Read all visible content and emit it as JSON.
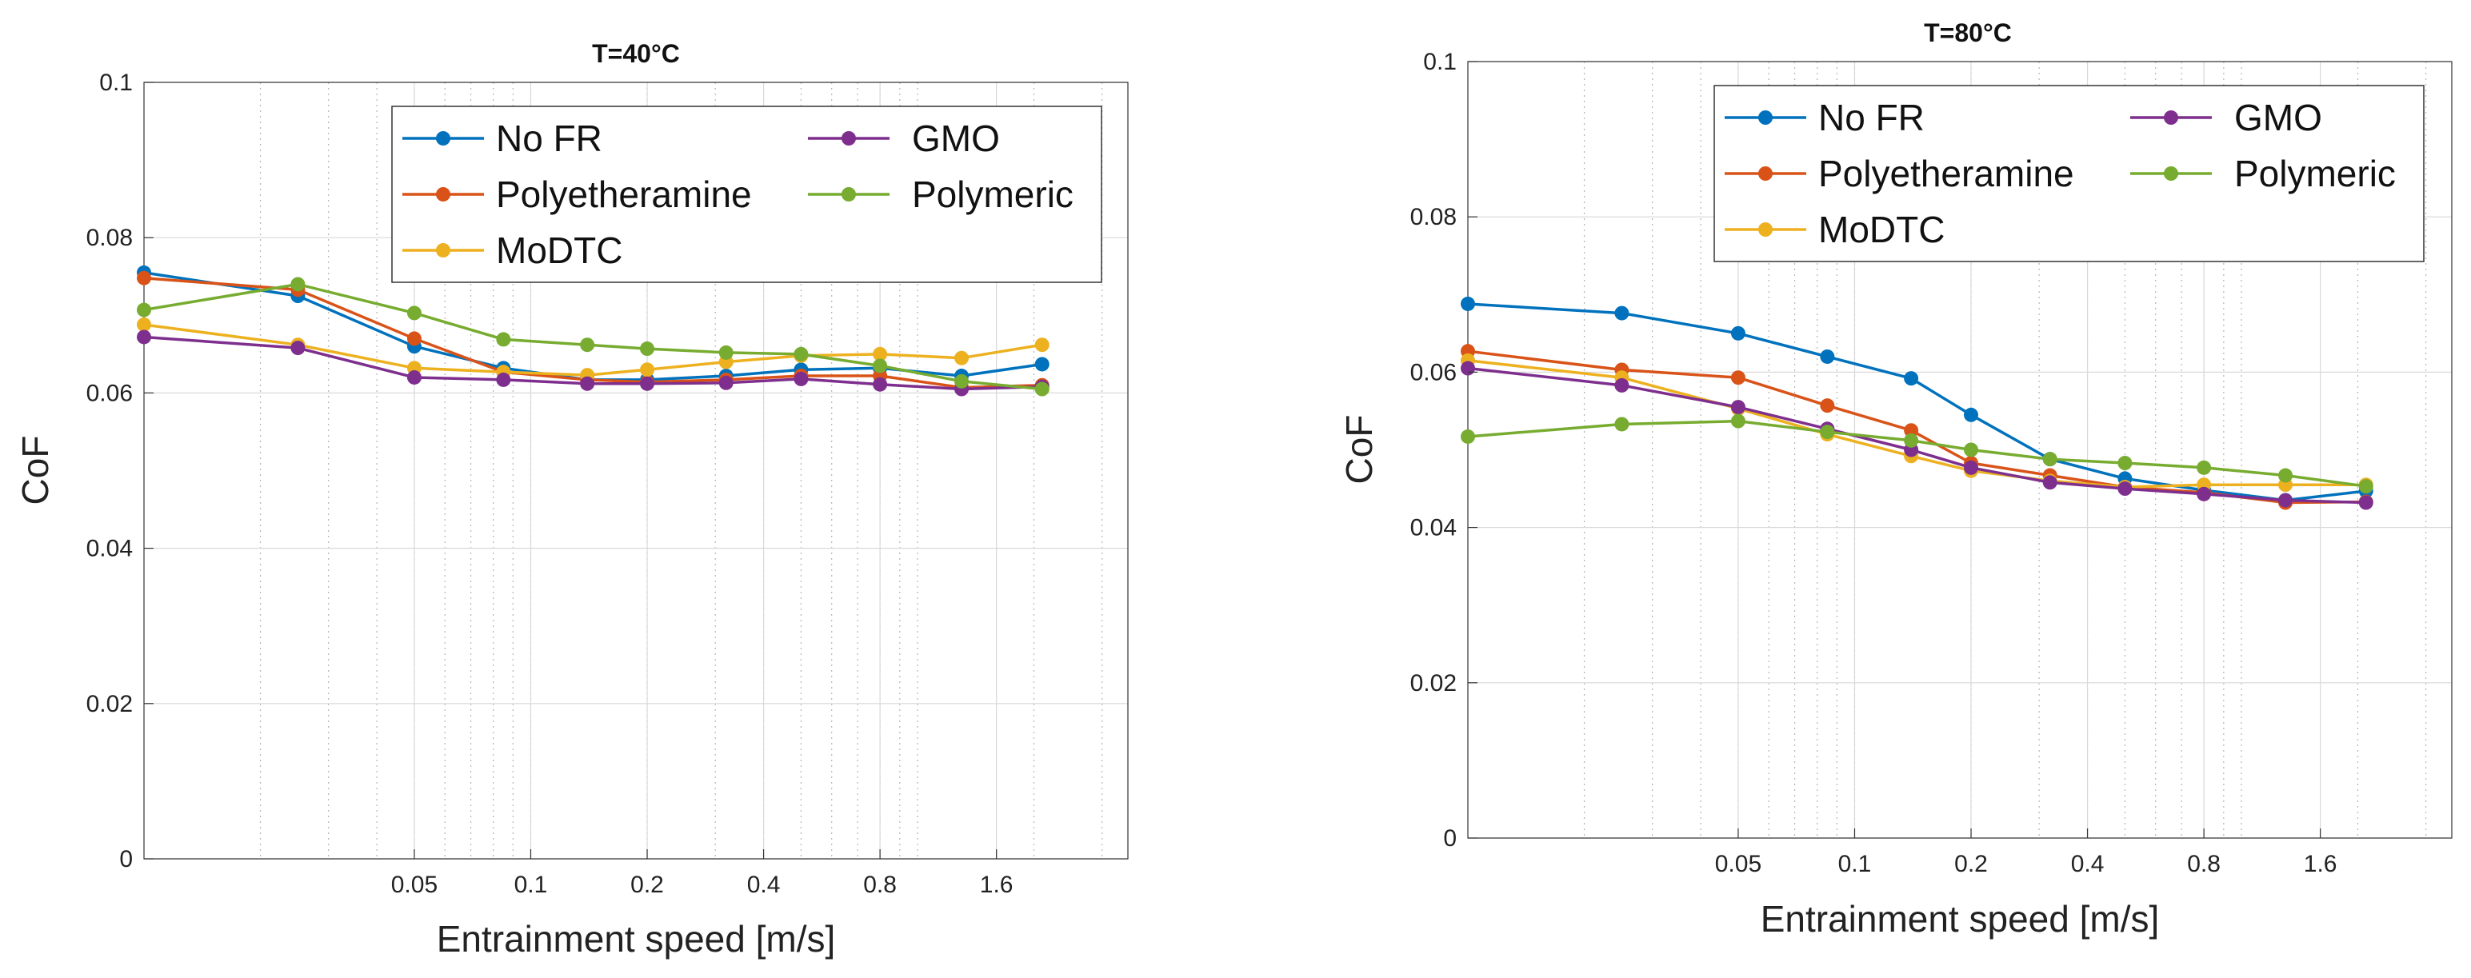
{
  "chart_data": [
    {
      "type": "line",
      "title": "T=40°C",
      "xlabel": "Entrainment speed [m/s]",
      "ylabel": "CoF",
      "xscale": "log",
      "xlim": [
        0.01,
        3.5
      ],
      "ylim": [
        0,
        0.1
      ],
      "yticks": [
        0,
        0.02,
        0.04,
        0.06,
        0.08,
        0.1
      ],
      "yticklabels": [
        "0",
        "0.02",
        "0.04",
        "0.06",
        "0.08",
        "0.1"
      ],
      "xticks": [
        0.05,
        0.1,
        0.2,
        0.4,
        0.8,
        1.6
      ],
      "xticklabels": [
        "0.05",
        "0.1",
        "0.2",
        "0.4",
        "0.8",
        "1.6"
      ],
      "grid": true,
      "legend_position": "top-right",
      "x": [
        0.01,
        0.025,
        0.05,
        0.085,
        0.14,
        0.2,
        0.32,
        0.5,
        0.8,
        1.3,
        2.1
      ],
      "series": [
        {
          "name": "No FR",
          "color": "#0072BD",
          "values": [
            0.0755,
            0.0725,
            0.066,
            0.0632,
            0.0617,
            0.0617,
            0.0622,
            0.063,
            0.0632,
            0.0622,
            0.0637
          ]
        },
        {
          "name": "Polyetheramine",
          "color": "#D95319",
          "values": [
            0.0748,
            0.0733,
            0.067,
            0.0627,
            0.0617,
            0.0614,
            0.0617,
            0.0622,
            0.0622,
            0.0607,
            0.061
          ]
        },
        {
          "name": "MoDTC",
          "color": "#EDB120",
          "values": [
            0.0688,
            0.0662,
            0.0632,
            0.0627,
            0.0623,
            0.063,
            0.064,
            0.0648,
            0.065,
            0.0645,
            0.0662
          ]
        },
        {
          "name": "GMO",
          "color": "#7E2F8E",
          "values": [
            0.0672,
            0.0658,
            0.062,
            0.0617,
            0.0612,
            0.0612,
            0.0613,
            0.0618,
            0.0611,
            0.0605,
            0.0608
          ]
        },
        {
          "name": "Polymeric",
          "color": "#77AC30",
          "values": [
            0.0707,
            0.074,
            0.0703,
            0.0669,
            0.0662,
            0.0657,
            0.0652,
            0.065,
            0.0635,
            0.0615,
            0.0605
          ]
        }
      ]
    },
    {
      "type": "line",
      "title": "T=80°C",
      "xlabel": "Entrainment speed [m/s]",
      "ylabel": "CoF",
      "xscale": "log",
      "xlim": [
        0.01,
        3.5
      ],
      "ylim": [
        0,
        0.1
      ],
      "yticks": [
        0,
        0.02,
        0.04,
        0.06,
        0.08,
        0.1
      ],
      "yticklabels": [
        "0",
        "0.02",
        "0.04",
        "0.06",
        "0.08",
        "0.1"
      ],
      "xticks": [
        0.05,
        0.1,
        0.2,
        0.4,
        0.8,
        1.6
      ],
      "xticklabels": [
        "0.05",
        "0.1",
        "0.2",
        "0.4",
        "0.8",
        "1.6"
      ],
      "grid": true,
      "legend_position": "top-right",
      "x": [
        0.01,
        0.025,
        0.05,
        0.085,
        0.14,
        0.2,
        0.32,
        0.5,
        0.8,
        1.3,
        2.1
      ],
      "series": [
        {
          "name": "No FR",
          "color": "#0072BD",
          "values": [
            0.0688,
            0.0676,
            0.065,
            0.062,
            0.0592,
            0.0545,
            0.0488,
            0.0463,
            0.0448,
            0.0435,
            0.0447
          ]
        },
        {
          "name": "Polyetheramine",
          "color": "#D95319",
          "values": [
            0.0627,
            0.0603,
            0.0593,
            0.0557,
            0.0525,
            0.0483,
            0.0467,
            0.0452,
            0.0445,
            0.0432,
            0.0433
          ]
        },
        {
          "name": "MoDTC",
          "color": "#EDB120",
          "values": [
            0.0615,
            0.0593,
            0.0553,
            0.052,
            0.0492,
            0.0473,
            0.046,
            0.0452,
            0.0455,
            0.0455,
            0.0455
          ]
        },
        {
          "name": "GMO",
          "color": "#7E2F8E",
          "values": [
            0.0605,
            0.0583,
            0.0555,
            0.0527,
            0.05,
            0.0477,
            0.0458,
            0.045,
            0.0443,
            0.0435,
            0.0432
          ]
        },
        {
          "name": "Polymeric",
          "color": "#77AC30",
          "values": [
            0.0517,
            0.0533,
            0.0537,
            0.0523,
            0.0512,
            0.05,
            0.0488,
            0.0483,
            0.0477,
            0.0467,
            0.0453
          ]
        }
      ]
    }
  ]
}
